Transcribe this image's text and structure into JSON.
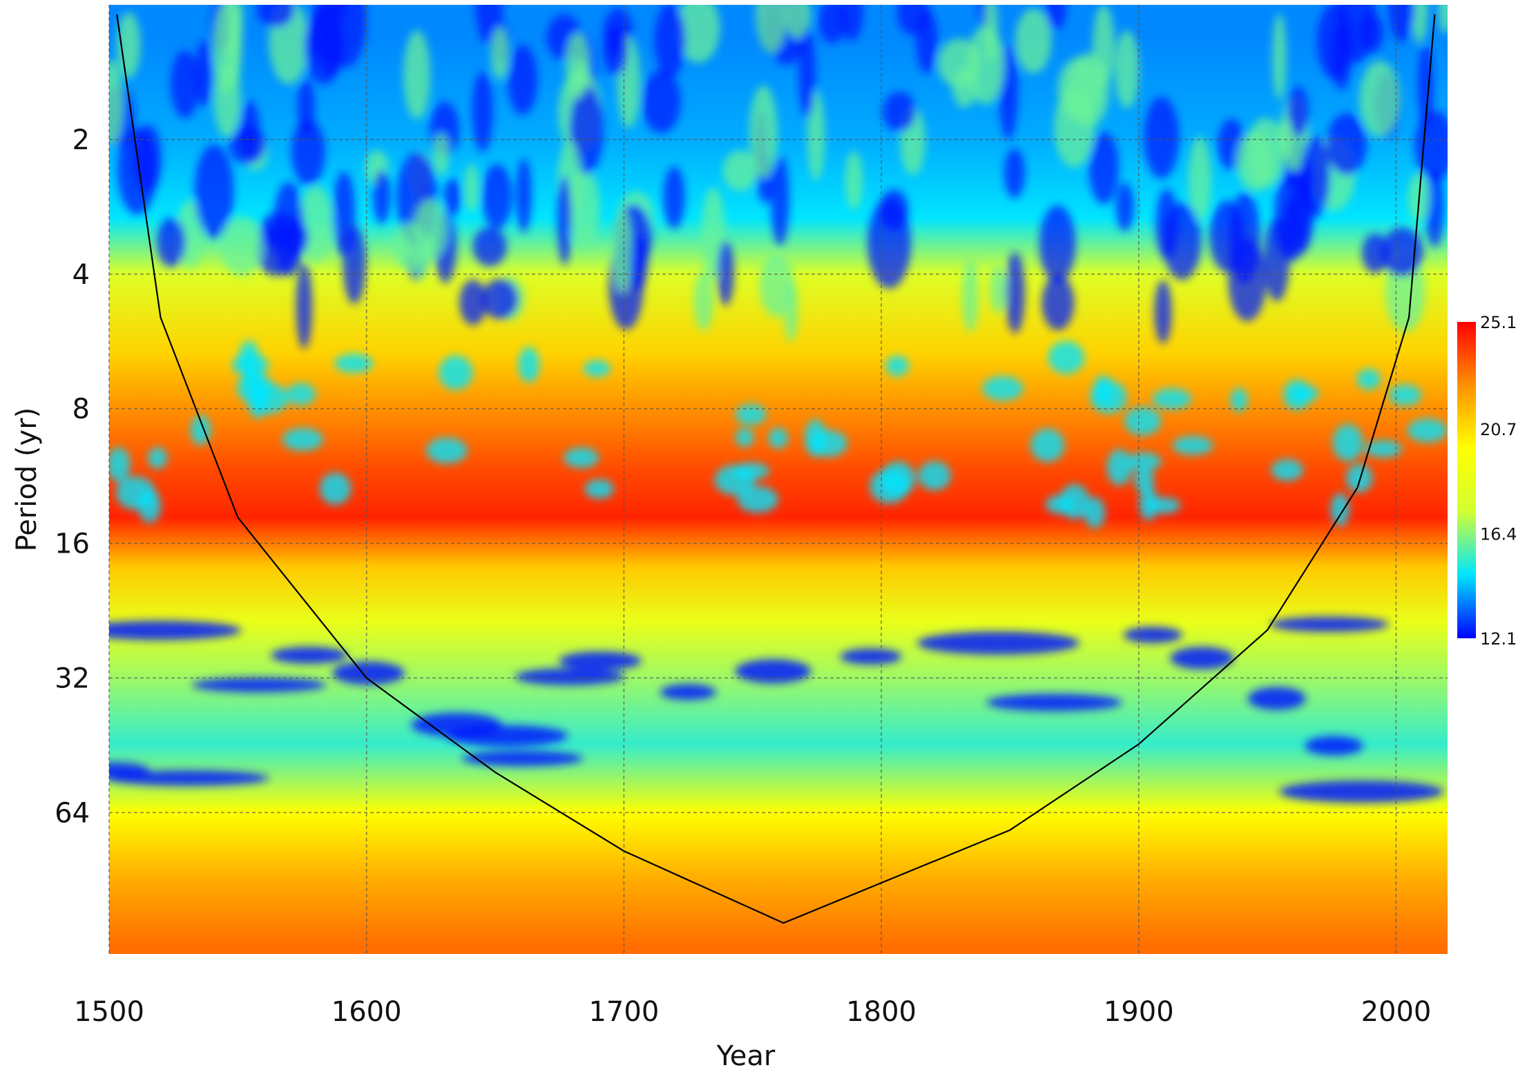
{
  "chart_data": {
    "type": "heatmap",
    "title": "",
    "xlabel": "Year",
    "ylabel": "Period (yr)",
    "xlim": [
      1500,
      2020
    ],
    "ylim_log2": [
      0,
      7.05
    ],
    "x_ticks": [
      1500,
      1600,
      1700,
      1800,
      1900,
      2000
    ],
    "y_ticks": [
      2,
      4,
      8,
      16,
      32,
      64
    ],
    "grid": true,
    "colorbar": {
      "min": 12.1,
      "max": 25.1,
      "ticks": [
        25.1,
        20.7,
        16.4,
        12.1
      ],
      "colormap": [
        "#0000ff",
        "#00e5ff",
        "#d2ff32",
        "#ffff00",
        "#ff9100",
        "#ff0000"
      ]
    },
    "power_bands": [
      {
        "period": 1.2,
        "level": 0.12
      },
      {
        "period": 2,
        "level": 0.15
      },
      {
        "period": 3,
        "level": 0.2
      },
      {
        "period": 4,
        "level": 0.45
      },
      {
        "period": 6,
        "level": 0.68
      },
      {
        "period": 8,
        "level": 0.8
      },
      {
        "period": 11,
        "level": 0.9
      },
      {
        "period": 14,
        "level": 0.95
      },
      {
        "period": 18,
        "level": 0.7
      },
      {
        "period": 24,
        "level": 0.5
      },
      {
        "period": 32,
        "level": 0.35
      },
      {
        "period": 45,
        "level": 0.25
      },
      {
        "period": 64,
        "level": 0.6
      },
      {
        "period": 90,
        "level": 0.75
      },
      {
        "period": 128,
        "level": 0.85
      }
    ],
    "cone_of_influence": [
      {
        "year": 1503,
        "period": 1.05
      },
      {
        "year": 1520,
        "period": 5
      },
      {
        "year": 1550,
        "period": 14
      },
      {
        "year": 1600,
        "period": 32
      },
      {
        "year": 1650,
        "period": 52
      },
      {
        "year": 1700,
        "period": 78
      },
      {
        "year": 1762,
        "period": 113
      },
      {
        "year": 1850,
        "period": 70
      },
      {
        "year": 1900,
        "period": 45
      },
      {
        "year": 1950,
        "period": 25
      },
      {
        "year": 1985,
        "period": 12
      },
      {
        "year": 2005,
        "period": 5
      },
      {
        "year": 2015,
        "period": 1.05
      }
    ]
  }
}
